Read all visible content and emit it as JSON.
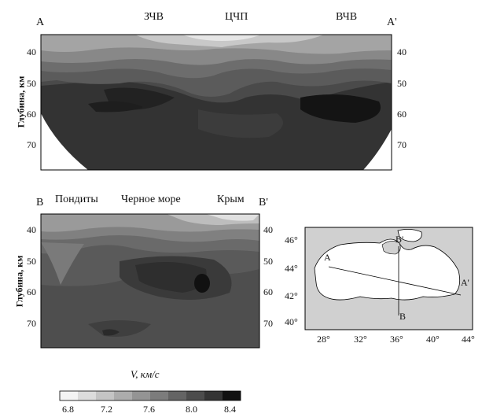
{
  "section1": {
    "left_label": "A",
    "right_label": "A'",
    "top_labels": [
      "ЗЧВ",
      "ЦЧП",
      "ВЧВ"
    ],
    "ylabel": "Глубина, км",
    "ticks": [
      "40",
      "50",
      "60",
      "70"
    ]
  },
  "section2": {
    "left_label": "B",
    "right_label": "B'",
    "top_labels": [
      "Пондиты",
      "Черное море",
      "Крым"
    ],
    "ylabel": "Глубина, км",
    "ticks": [
      "40",
      "50",
      "60",
      "70"
    ]
  },
  "map": {
    "y_ticks": [
      "46°",
      "44°",
      "42°",
      "40°"
    ],
    "x_ticks": [
      "28°",
      "32°",
      "36°",
      "40°",
      "44°"
    ],
    "profile_labels": [
      "A",
      "A'",
      "B",
      "B'"
    ]
  },
  "colorbar": {
    "title": "V, км/с",
    "ticks": [
      "6.8",
      "7.2",
      "7.6",
      "8.0",
      "8.4"
    ]
  }
}
